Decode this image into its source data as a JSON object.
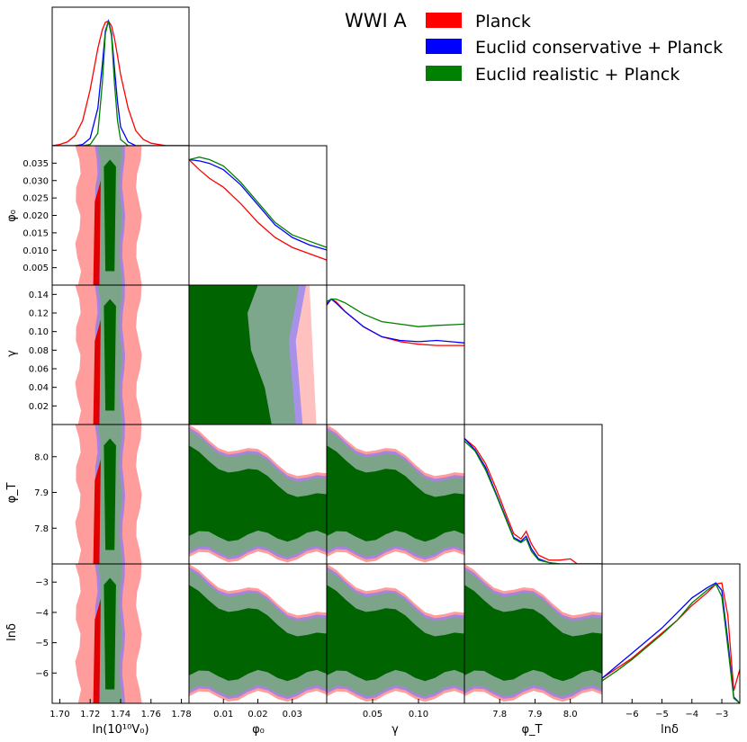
{
  "title": "WWI A",
  "legend": [
    {
      "name": "Planck",
      "color": "#ff0000"
    },
    {
      "name": "Euclid conservative + Planck",
      "color": "#0000ff"
    },
    {
      "name": "Euclid realistic + Planck",
      "color": "#008000"
    }
  ],
  "chart_data": {
    "type": "corner",
    "parameters": [
      {
        "label": "ln(10¹⁰V₀)",
        "range": [
          1.695,
          1.785
        ],
        "ticks": [
          "1.70",
          "1.72",
          "1.74",
          "1.76",
          "1.78"
        ]
      },
      {
        "label": "φ₀",
        "range": [
          0.0,
          0.04
        ],
        "ticks": [
          "0.005",
          "0.010",
          "0.015",
          "0.020",
          "0.025",
          "0.030",
          "0.035"
        ],
        "xticks": [
          "0.01",
          "0.02",
          "0.03"
        ]
      },
      {
        "label": "γ",
        "range": [
          0.0,
          0.15
        ],
        "ticks": [
          "0.02",
          "0.04",
          "0.06",
          "0.08",
          "0.10",
          "0.12",
          "0.14"
        ],
        "xticks": [
          "0.05",
          "0.10"
        ]
      },
      {
        "label": "φ_T",
        "range": [
          7.7,
          8.09
        ],
        "ticks": [
          "7.8",
          "7.9",
          "8.0"
        ],
        "xticks": [
          "7.8",
          "7.9",
          "8.0"
        ]
      },
      {
        "label": "lnδ",
        "range": [
          -7.0,
          -2.4
        ],
        "ticks": [
          "-3",
          "-4",
          "-5",
          "-6"
        ],
        "xticks": [
          "-6",
          "-5",
          "-4",
          "-3"
        ]
      }
    ],
    "series": [
      {
        "name": "Planck",
        "color": "#ff0000"
      },
      {
        "name": "Euclid conservative + Planck",
        "color": "#0000ff"
      },
      {
        "name": "Euclid realistic + Planck",
        "color": "#008000"
      }
    ],
    "marginals": {
      "V0": {
        "x": [
          1.695,
          1.7,
          1.705,
          1.71,
          1.715,
          1.72,
          1.725,
          1.728,
          1.73,
          1.732,
          1.734,
          1.736,
          1.738,
          1.74,
          1.745,
          1.75,
          1.755,
          1.76,
          1.765,
          1.77,
          1.785
        ],
        "Planck": [
          0,
          0.01,
          0.03,
          0.08,
          0.2,
          0.45,
          0.78,
          0.93,
          0.99,
          1.0,
          0.96,
          0.86,
          0.72,
          0.57,
          0.3,
          0.12,
          0.05,
          0.02,
          0.01,
          0,
          0
        ],
        "Euclid conservative + Planck": [
          0,
          0,
          0,
          0,
          0.01,
          0.06,
          0.3,
          0.65,
          0.92,
          1.0,
          0.9,
          0.62,
          0.35,
          0.15,
          0.03,
          0,
          0,
          0,
          0,
          0,
          0
        ],
        "Euclid realistic + Planck": [
          0,
          0,
          0,
          0,
          0,
          0.01,
          0.1,
          0.5,
          0.9,
          1.0,
          0.88,
          0.5,
          0.2,
          0.05,
          0,
          0,
          0,
          0,
          0,
          0,
          0
        ]
      },
      "phi0": {
        "x": [
          0,
          0.003,
          0.006,
          0.01,
          0.015,
          0.02,
          0.025,
          0.03,
          0.035,
          0.04
        ],
        "Planck": [
          1.0,
          0.92,
          0.85,
          0.78,
          0.65,
          0.5,
          0.38,
          0.3,
          0.25,
          0.2
        ],
        "Euclid conservative + Planck": [
          1.0,
          0.99,
          0.97,
          0.92,
          0.8,
          0.64,
          0.48,
          0.38,
          0.32,
          0.28
        ],
        "Euclid realistic + Planck": [
          1.0,
          1.02,
          1.0,
          0.95,
          0.82,
          0.66,
          0.5,
          0.4,
          0.35,
          0.3
        ]
      },
      "gamma": {
        "x": [
          0,
          0.005,
          0.01,
          0.02,
          0.04,
          0.06,
          0.08,
          0.1,
          0.12,
          0.15
        ],
        "Planck": [
          0.95,
          1.0,
          0.98,
          0.9,
          0.78,
          0.7,
          0.66,
          0.64,
          0.63,
          0.63
        ],
        "Euclid conservative + Planck": [
          0.96,
          1.0,
          0.97,
          0.9,
          0.78,
          0.7,
          0.67,
          0.66,
          0.67,
          0.65
        ],
        "Euclid realistic + Planck": [
          0.98,
          1.0,
          1.0,
          0.97,
          0.88,
          0.82,
          0.8,
          0.78,
          0.79,
          0.8
        ]
      },
      "phiT": {
        "x": [
          7.7,
          7.73,
          7.76,
          7.79,
          7.82,
          7.84,
          7.86,
          7.875,
          7.89,
          7.91,
          7.94,
          7.97,
          8.0,
          8.02,
          8.09
        ],
        "Planck": [
          1.0,
          0.93,
          0.8,
          0.6,
          0.38,
          0.24,
          0.2,
          0.26,
          0.16,
          0.07,
          0.03,
          0.03,
          0.04,
          0,
          0
        ],
        "Euclid conservative + Planck": [
          1.0,
          0.91,
          0.77,
          0.56,
          0.35,
          0.21,
          0.18,
          0.22,
          0.12,
          0.04,
          0.01,
          0,
          0,
          0,
          0
        ],
        "Euclid realistic + Planck": [
          0.98,
          0.9,
          0.75,
          0.55,
          0.34,
          0.2,
          0.17,
          0.2,
          0.1,
          0.03,
          0.01,
          0,
          0,
          0,
          0
        ]
      },
      "lndelta": {
        "x": [
          -7.0,
          -6.5,
          -6.0,
          -5.5,
          -5.0,
          -4.5,
          -4.0,
          -3.5,
          -3.2,
          -3.0,
          -2.8,
          -2.6,
          -2.4
        ],
        "Planck": [
          0.2,
          0.28,
          0.36,
          0.46,
          0.56,
          0.66,
          0.78,
          0.88,
          0.95,
          0.96,
          0.7,
          0.1,
          0.27
        ],
        "Euclid conservative + Planck": [
          0.2,
          0.3,
          0.4,
          0.5,
          0.6,
          0.72,
          0.84,
          0.92,
          0.96,
          0.9,
          0.5,
          0.05,
          0
        ],
        "Euclid realistic + Planck": [
          0.18,
          0.26,
          0.35,
          0.45,
          0.55,
          0.66,
          0.8,
          0.9,
          0.95,
          0.85,
          0.45,
          0.04,
          0
        ]
      }
    }
  }
}
